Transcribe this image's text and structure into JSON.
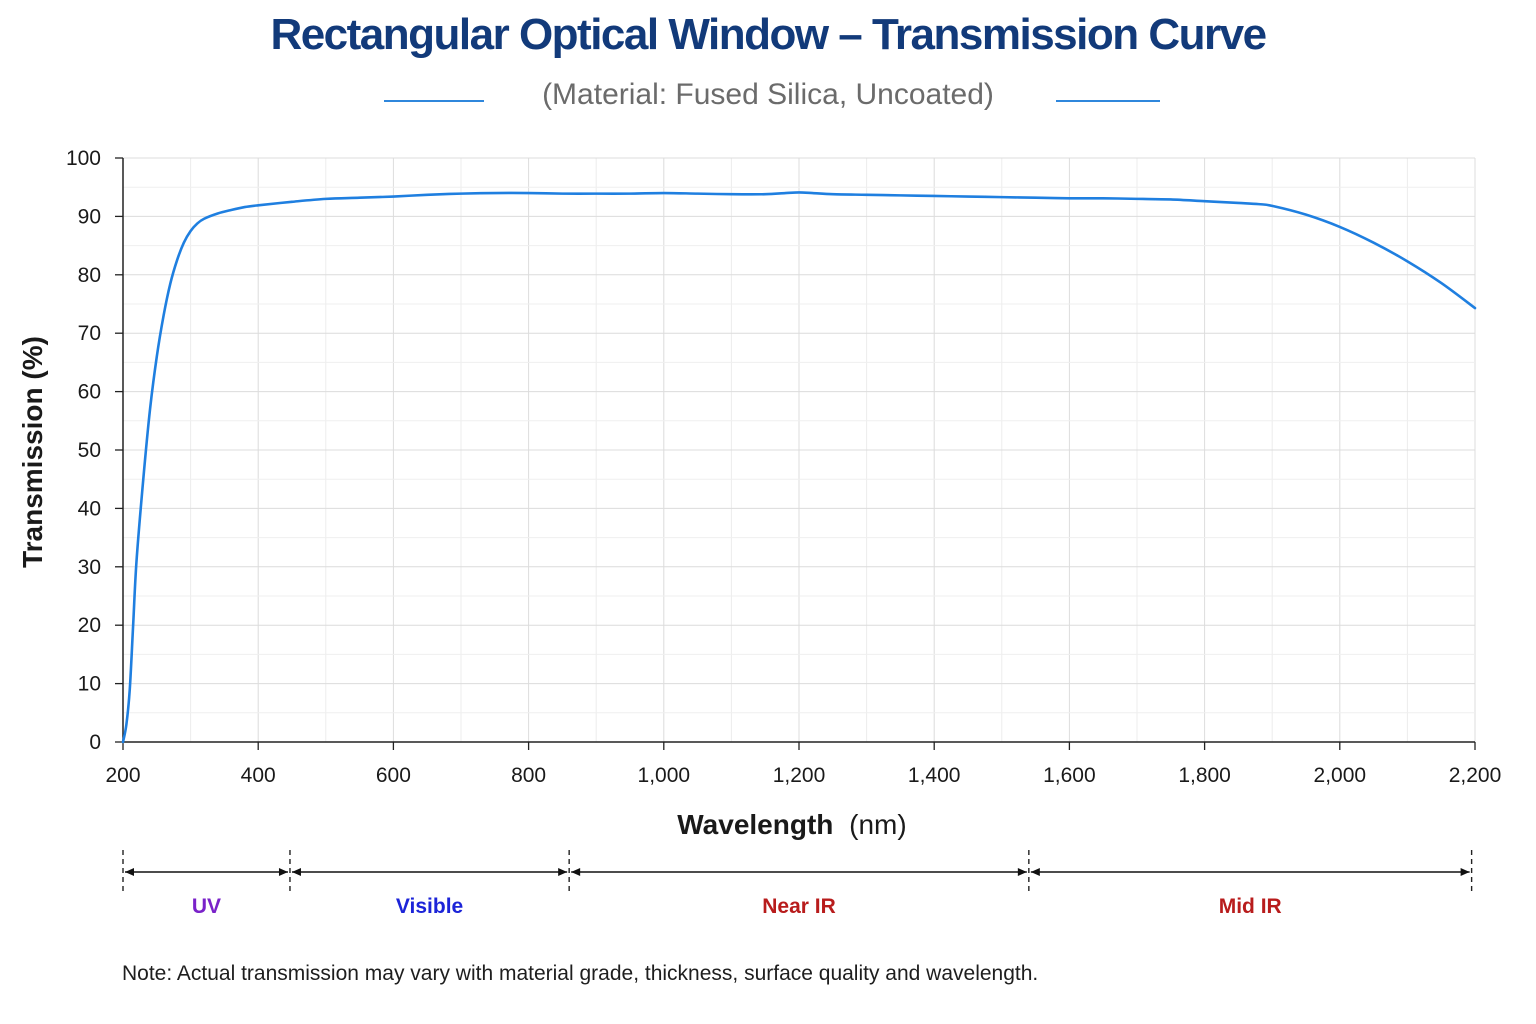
{
  "chart_data": {
    "type": "line",
    "title": "Rectangular Optical Window – Transmission Curve",
    "subtitle": "(Material: Fused Silica, Uncoated)",
    "xlabel_main": "Wavelength",
    "xlabel_unit": "(nm)",
    "ylabel": "Transmission (%)",
    "xlim": [
      200,
      2200
    ],
    "ylim": [
      0,
      100
    ],
    "x_ticks": [
      200,
      400,
      600,
      800,
      1000,
      1200,
      1400,
      1600,
      1800,
      2000,
      2200
    ],
    "x_tick_labels": [
      "200",
      "400",
      "600",
      "800",
      "1,000",
      "1,200",
      "1,400",
      "1,600",
      "1,800",
      "2,000",
      "2,200"
    ],
    "y_ticks": [
      0,
      10,
      20,
      30,
      40,
      50,
      60,
      70,
      80,
      90,
      100
    ],
    "y_tick_labels": [
      "0",
      "10",
      "20",
      "30",
      "40",
      "50",
      "60",
      "70",
      "80",
      "90",
      "100"
    ],
    "grid": true,
    "line_color": "#1f7fe0",
    "series": [
      {
        "x": [
          200,
          205,
          210,
          215,
          220,
          230,
          240,
          250,
          260,
          270,
          280,
          290,
          300,
          310,
          320,
          340,
          360,
          380,
          400,
          450,
          500,
          550,
          600,
          650,
          700,
          750,
          800,
          850,
          900,
          950,
          1000,
          1050,
          1100,
          1150,
          1180,
          1200,
          1220,
          1250,
          1300,
          1350,
          1400,
          1450,
          1500,
          1550,
          1600,
          1650,
          1700,
          1750,
          1800,
          1850,
          1880,
          1900,
          1950,
          2000,
          2050,
          2100,
          2150,
          2200
        ],
        "y": [
          0,
          3,
          9,
          20,
          31,
          45,
          57,
          66,
          73,
          78.5,
          82.5,
          85.5,
          87.5,
          88.8,
          89.6,
          90.5,
          91.1,
          91.6,
          91.9,
          92.5,
          93.0,
          93.2,
          93.4,
          93.7,
          93.9,
          94.0,
          94.0,
          93.9,
          93.9,
          93.9,
          94.0,
          93.9,
          93.8,
          93.8,
          94.0,
          94.1,
          94.0,
          93.8,
          93.7,
          93.6,
          93.5,
          93.4,
          93.3,
          93.2,
          93.1,
          93.1,
          93.0,
          92.9,
          92.6,
          92.3,
          92.1,
          91.8,
          90.3,
          88.2,
          85.5,
          82.3,
          78.6,
          74.3
        ]
      }
    ],
    "regions": [
      {
        "label": "UV",
        "start": 200,
        "end": 447,
        "color": "#7a22c9"
      },
      {
        "label": "Visible",
        "start": 447,
        "end": 860,
        "color": "#1c24d8"
      },
      {
        "label": "Near IR",
        "start": 860,
        "end": 1540,
        "color": "#b81c1c"
      },
      {
        "label": "Mid IR",
        "start": 1540,
        "end": 2195,
        "color": "#b81c1c"
      }
    ],
    "note": "Note: Actual transmission may vary with material grade, thickness, surface quality and wavelength."
  }
}
